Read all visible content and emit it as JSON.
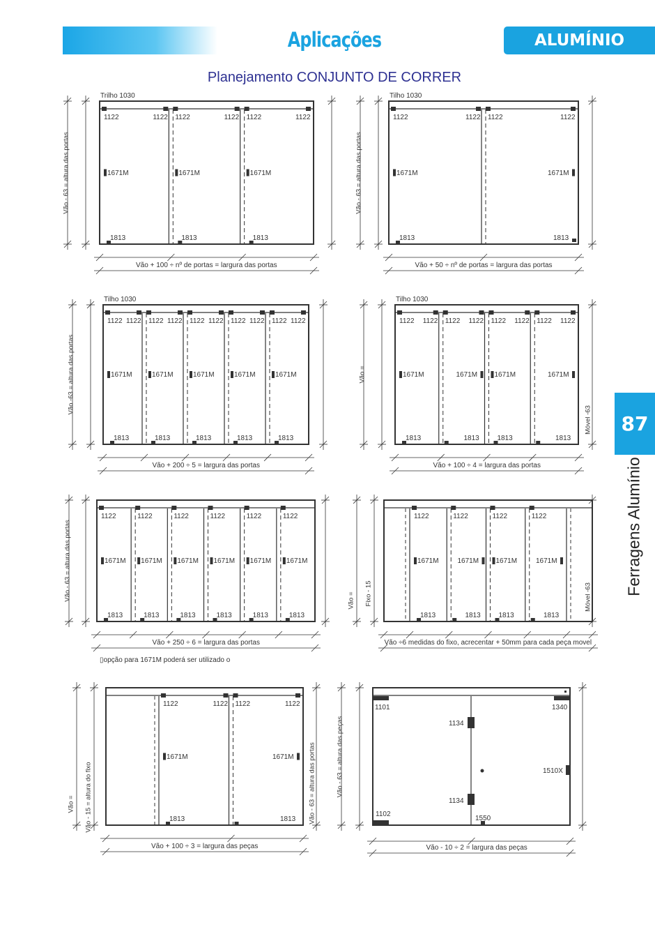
{
  "header": {
    "title": "Aplicações",
    "badge": "ALUMÍNIO",
    "subtitle": "Planejamento  CONJUNTO DE CORRER"
  },
  "side_tab": {
    "page_number": "87",
    "section": "Ferragens Alumínio"
  },
  "colors": {
    "accent": "#1aa3e0",
    "subtitle": "#2e3192",
    "line": "#333333"
  },
  "note": "▯opção para 1671M poderá ser utilizado o",
  "diagrams": [
    {
      "rail": "Trilho 1030",
      "formula": "Vão + 100 ÷ nº de portas = largura das portas",
      "left_labels": [
        "Vão - 63 = altura das portas"
      ],
      "right_labels": [],
      "panels": [
        {
          "top": [
            "1122",
            "1122"
          ],
          "mid": "1671M",
          "bottom": "1813"
        },
        {
          "top": [
            "1122",
            "1122"
          ],
          "mid": "1671M",
          "bottom": "1813"
        },
        {
          "top": [
            "1122",
            "1122"
          ],
          "mid": "1671M",
          "bottom": "1813"
        }
      ]
    },
    {
      "rail": "Tilho 1030",
      "formula": "Vão + 50 ÷ nº de portas = largura das portas",
      "left_labels": [
        "Vão - 63 = altura das portas"
      ],
      "right_labels": [],
      "panels": [
        {
          "top": [
            "1122",
            "1122"
          ],
          "mid": "1671M",
          "bottom": "1813"
        },
        {
          "top": [
            "1122",
            "1122"
          ],
          "mid": "1671M",
          "bottom": "1813"
        }
      ]
    },
    {
      "rail": "Tilho 1030",
      "formula": "Vão + 200 ÷ 5  = largura das portas",
      "left_labels": [
        "Vão -63 = altura das portas"
      ],
      "right_labels": [],
      "panels": [
        {
          "top": [
            "1122",
            "1122"
          ],
          "mid": "1671M",
          "bottom": "1813"
        },
        {
          "top": [
            "1122",
            "1122"
          ],
          "mid": "1671M",
          "bottom": "1813"
        },
        {
          "top": [
            "1122",
            "1122"
          ],
          "mid": "1671M",
          "bottom": "1813"
        },
        {
          "top": [
            "1122",
            "1122"
          ],
          "mid": "1671M",
          "bottom": "1813"
        },
        {
          "top": [
            "1122",
            "1122"
          ],
          "mid": "1671M",
          "bottom": "1813"
        }
      ]
    },
    {
      "rail": "Tilho 1030",
      "formula": "Vão + 100 ÷ 4  = largura das portas",
      "left_labels": [
        "Vão ="
      ],
      "right_labels": [
        "Móvel -63"
      ],
      "panels": [
        {
          "top": [
            "1122",
            "1122"
          ],
          "mid": "1671M",
          "bottom": "1813"
        },
        {
          "top": [
            "1122",
            "1122"
          ],
          "mid": "1671M",
          "bottom": "1813"
        },
        {
          "top": [
            "1122",
            "1122"
          ],
          "mid": "1671M",
          "bottom": "1813"
        },
        {
          "top": [
            "1122",
            "1122"
          ],
          "mid": "1671M",
          "bottom": "1813"
        }
      ]
    },
    {
      "rail": "",
      "formula": "Vão + 250 ÷ 6  = largura das portas",
      "left_labels": [
        "Vão - 63 = altura das portas"
      ],
      "right_labels": [],
      "panels": [
        {
          "top": [
            "1122"
          ],
          "mid": "1671M",
          "bottom": "1813"
        },
        {
          "top": [
            "1122"
          ],
          "mid": "1671M",
          "bottom": "1813"
        },
        {
          "top": [
            "1122"
          ],
          "mid": "1671M",
          "bottom": "1813"
        },
        {
          "top": [
            "1122"
          ],
          "mid": "1671M",
          "bottom": "1813"
        },
        {
          "top": [
            "1122"
          ],
          "mid": "1671M",
          "bottom": "1813"
        },
        {
          "top": [
            "1122"
          ],
          "mid": "1671M",
          "bottom": "1813"
        }
      ]
    },
    {
      "rail": "",
      "formula": "Vão ÷6 medidas do fixo, acrecentar + 50mm para cada peça movel",
      "left_labels": [
        "Vão =",
        "Fixo - 15"
      ],
      "right_labels": [
        "Móvel -63"
      ],
      "panels": [
        {
          "top": [
            "1122"
          ],
          "mid": "1671M",
          "bottom": "1813"
        },
        {
          "top": [
            "1122"
          ],
          "mid": "1671M",
          "bottom": "1813"
        },
        {
          "top": [
            "1122"
          ],
          "mid": "1671M",
          "bottom": "1813"
        },
        {
          "top": [
            "1122"
          ],
          "mid": "1671M",
          "bottom": "1813"
        }
      ]
    },
    {
      "rail": "",
      "formula": "Vão + 100 ÷ 3  = largura das peças",
      "left_labels": [
        "Vão =",
        "Vão - 15 = altura do fixo"
      ],
      "right_labels": [
        "Vão - 63 = altura das portas"
      ],
      "panels": [
        {
          "top": [
            "1122",
            "1122"
          ],
          "mid": "1671M",
          "bottom": "1813"
        },
        {
          "top": [
            "1122",
            "1122"
          ],
          "mid": "1671M",
          "bottom": "1813"
        }
      ]
    },
    {
      "rail": "",
      "formula": "Vão - 10 ÷ 2  = largura das peças",
      "left_labels": [
        "Vão - 63 = altura das peças"
      ],
      "right_labels": [],
      "parts": [
        "1101",
        "1340",
        "1134",
        "1134",
        "1510X",
        "1102",
        "1550"
      ]
    }
  ]
}
